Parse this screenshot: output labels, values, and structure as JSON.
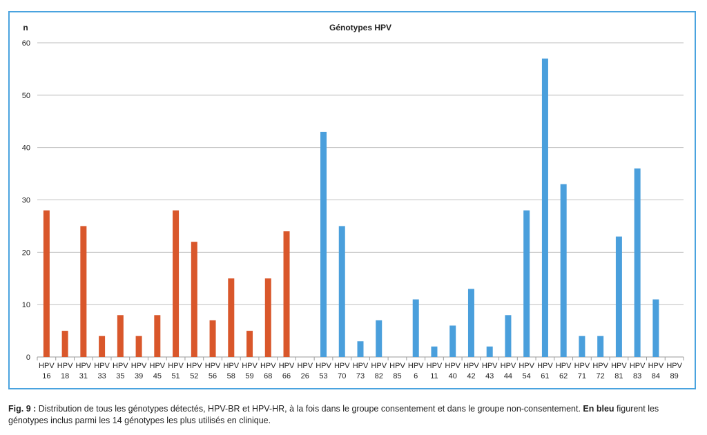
{
  "chart_data": {
    "type": "bar",
    "title": "Génotypes HPV",
    "ylabel": "n",
    "xlabel": "",
    "ylim": [
      0,
      60
    ],
    "yticks": [
      0,
      10,
      20,
      30,
      40,
      50,
      60
    ],
    "grid": true,
    "categories": [
      [
        "HPV",
        "16"
      ],
      [
        "HPV",
        "18"
      ],
      [
        "HPV",
        "31"
      ],
      [
        "HPV",
        "33"
      ],
      [
        "HPV",
        "35"
      ],
      [
        "HPV",
        "39"
      ],
      [
        "HPV",
        "45"
      ],
      [
        "HPV",
        "51"
      ],
      [
        "HPV",
        "52"
      ],
      [
        "HPV",
        "56"
      ],
      [
        "HPV",
        "58"
      ],
      [
        "HPV",
        "59"
      ],
      [
        "HPV",
        "68"
      ],
      [
        "HPV",
        "66"
      ],
      [
        "HPV",
        "26"
      ],
      [
        "HPV",
        "53"
      ],
      [
        "HPV",
        "70"
      ],
      [
        "HPV",
        "73"
      ],
      [
        "HPV",
        "82"
      ],
      [
        "HPV",
        "85"
      ],
      [
        "HPV",
        "6"
      ],
      [
        "HPV",
        "11"
      ],
      [
        "HPV",
        "40"
      ],
      [
        "HPV",
        "42"
      ],
      [
        "HPV",
        "43"
      ],
      [
        "HPV",
        "44"
      ],
      [
        "HPV",
        "54"
      ],
      [
        "HPV",
        "61"
      ],
      [
        "HPV",
        "62"
      ],
      [
        "HPV",
        "71"
      ],
      [
        "HPV",
        "72"
      ],
      [
        "HPV",
        "81"
      ],
      [
        "HPV",
        "83"
      ],
      [
        "HPV",
        "84"
      ],
      [
        "HPV",
        "89"
      ]
    ],
    "values": [
      28,
      5,
      25,
      4,
      8,
      4,
      8,
      28,
      22,
      7,
      15,
      5,
      15,
      24,
      0,
      43,
      25,
      3,
      7,
      0,
      11,
      2,
      6,
      13,
      2,
      8,
      28,
      57,
      33,
      4,
      4,
      23,
      36,
      11,
      0
    ],
    "groups": [
      "orange",
      "orange",
      "orange",
      "orange",
      "orange",
      "orange",
      "orange",
      "orange",
      "orange",
      "orange",
      "orange",
      "orange",
      "orange",
      "orange",
      "orange",
      "blue",
      "blue",
      "blue",
      "blue",
      "blue",
      "blue",
      "blue",
      "blue",
      "blue",
      "blue",
      "blue",
      "blue",
      "blue",
      "blue",
      "blue",
      "blue",
      "blue",
      "blue",
      "blue",
      "blue"
    ],
    "colors": {
      "orange": "#d9572b",
      "blue": "#4a9fdc",
      "grid": "#bdbdbd",
      "axis": "#9a9a9a",
      "frame": "#4aa3df"
    }
  },
  "caption": {
    "label": "Fig. 9 :",
    "text1": " Distribution de tous les génotypes détectés, HPV-BR et HPV-HR, à la fois dans le groupe consentement et dans le groupe non-consentement. ",
    "emphasis": "En bleu",
    "text2": " figurent les génotypes inclus parmi les 14 génotypes les plus utilisés en clinique."
  }
}
